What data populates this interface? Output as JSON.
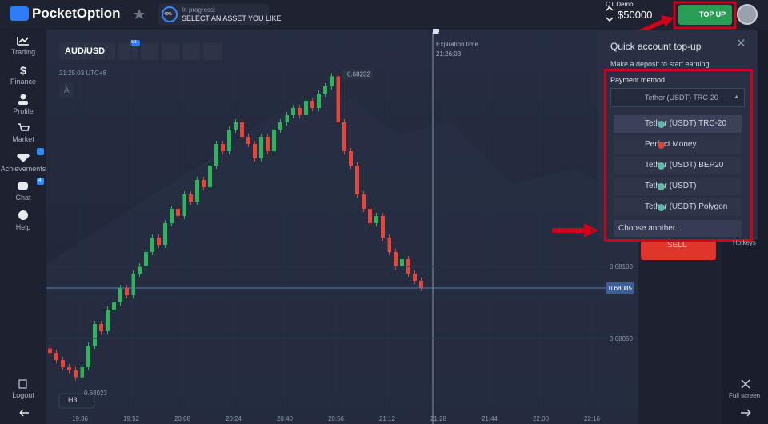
{
  "header": {
    "logo": "PocketOption",
    "progress_percent": "40%",
    "progress_label": "In progress:",
    "progress_task": "SELECT AN ASSET YOU LIKE",
    "account_type": "QT Demo",
    "balance": "$50000",
    "top_up": "TOP UP"
  },
  "sidebar": {
    "items": [
      "Trading",
      "Finance",
      "Profile",
      "Market",
      "Achievements",
      "Chat",
      "Help"
    ],
    "chat_badge": "4",
    "logout": "Logout"
  },
  "toolbar": {
    "asset": "AUD/USD",
    "timeframe_badge": "M1"
  },
  "chart": {
    "server_time": "21:25:03 UTC+8",
    "drawing_mode": "A",
    "expiration_label": "Expiration time",
    "expiration_time": "21:26:03",
    "period": "H3",
    "high_label": 0.68232,
    "low_label": 0.68023,
    "current_price": 0.68085,
    "price_ticks": [
      {
        "value": 0.681,
        "label": "0.68100"
      },
      {
        "value": 0.6805,
        "label": "0.68050"
      }
    ],
    "time_ticks": [
      "19:36",
      "19:52",
      "20:08",
      "20:24",
      "20:40",
      "20:56",
      "21:12",
      "21:28",
      "21:44",
      "22:00",
      "22:16"
    ],
    "prices": [
      0.68043,
      0.6804,
      0.68035,
      0.6803,
      0.68028,
      0.68023,
      0.6803,
      0.68045,
      0.6806,
      0.68055,
      0.6807,
      0.68075,
      0.68085,
      0.6808,
      0.68095,
      0.681,
      0.6811,
      0.6812,
      0.68115,
      0.6813,
      0.6814,
      0.68135,
      0.6815,
      0.68145,
      0.6816,
      0.68155,
      0.6817,
      0.68185,
      0.6818,
      0.68195,
      0.682,
      0.6819,
      0.68185,
      0.68175,
      0.6819,
      0.6818,
      0.68195,
      0.682,
      0.68205,
      0.6821,
      0.68205,
      0.68215,
      0.6821,
      0.6822,
      0.68225,
      0.68232,
      0.682,
      0.6818,
      0.6817,
      0.6815,
      0.6814,
      0.6813,
      0.68135,
      0.6812,
      0.6811,
      0.681,
      0.68105,
      0.68095,
      0.6809,
      0.68085
    ]
  },
  "topup_panel": {
    "title": "Quick account top-up",
    "subtitle": "Make a deposit to start earning",
    "payment_label": "Payment method",
    "selected": "Tether (USDT) TRC-20",
    "options": [
      "Tether (USDT) TRC-20",
      "Perfect Money",
      "Tether (USDT) BEP20",
      "Tether (USDT)",
      "Tether (USDT) Polygon"
    ],
    "choose_another": "Choose another..."
  },
  "right_panel": {
    "sell": "SELL",
    "hotkeys": "Hotkeys",
    "full_screen": "Full screen"
  }
}
